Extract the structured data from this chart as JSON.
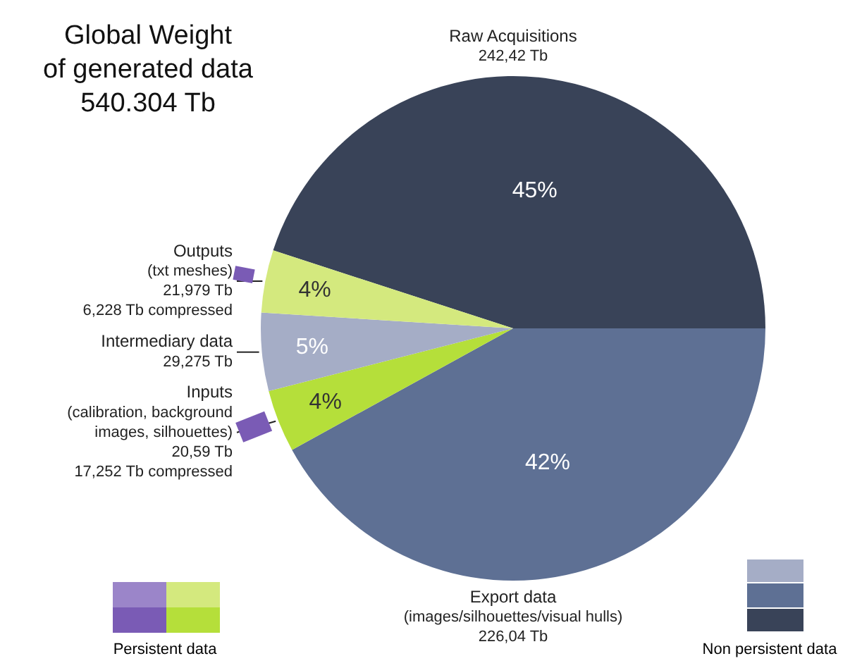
{
  "chart_data": {
    "type": "pie",
    "title": "Global Weight\nof generated data\n540.304 Tb",
    "categories": [
      "Raw Acquisitions\n242,42 Tb",
      "Export data\n(images/silhouettes/visual hulls)\n226,04 Tb",
      "Inputs\n(calibration, background\nimages, silhouettes)\n20,59 Tb\n17,252 Tb compressed",
      "Intermediary data\n29,275 Tb",
      "Outputs\n(txt meshes)\n21,979 Tb\n6,228 Tb compressed"
    ],
    "values": [
      45,
      42,
      4,
      5,
      4
    ],
    "colors": [
      "#394358",
      "#5e7094",
      "#b5df3a",
      "#a5adc6",
      "#d4e97e"
    ],
    "value_labels": [
      "45%",
      "42%",
      "4%",
      "5%",
      "4%"
    ],
    "annotations": [
      "Persistent data",
      "Non persistent data"
    ]
  }
}
